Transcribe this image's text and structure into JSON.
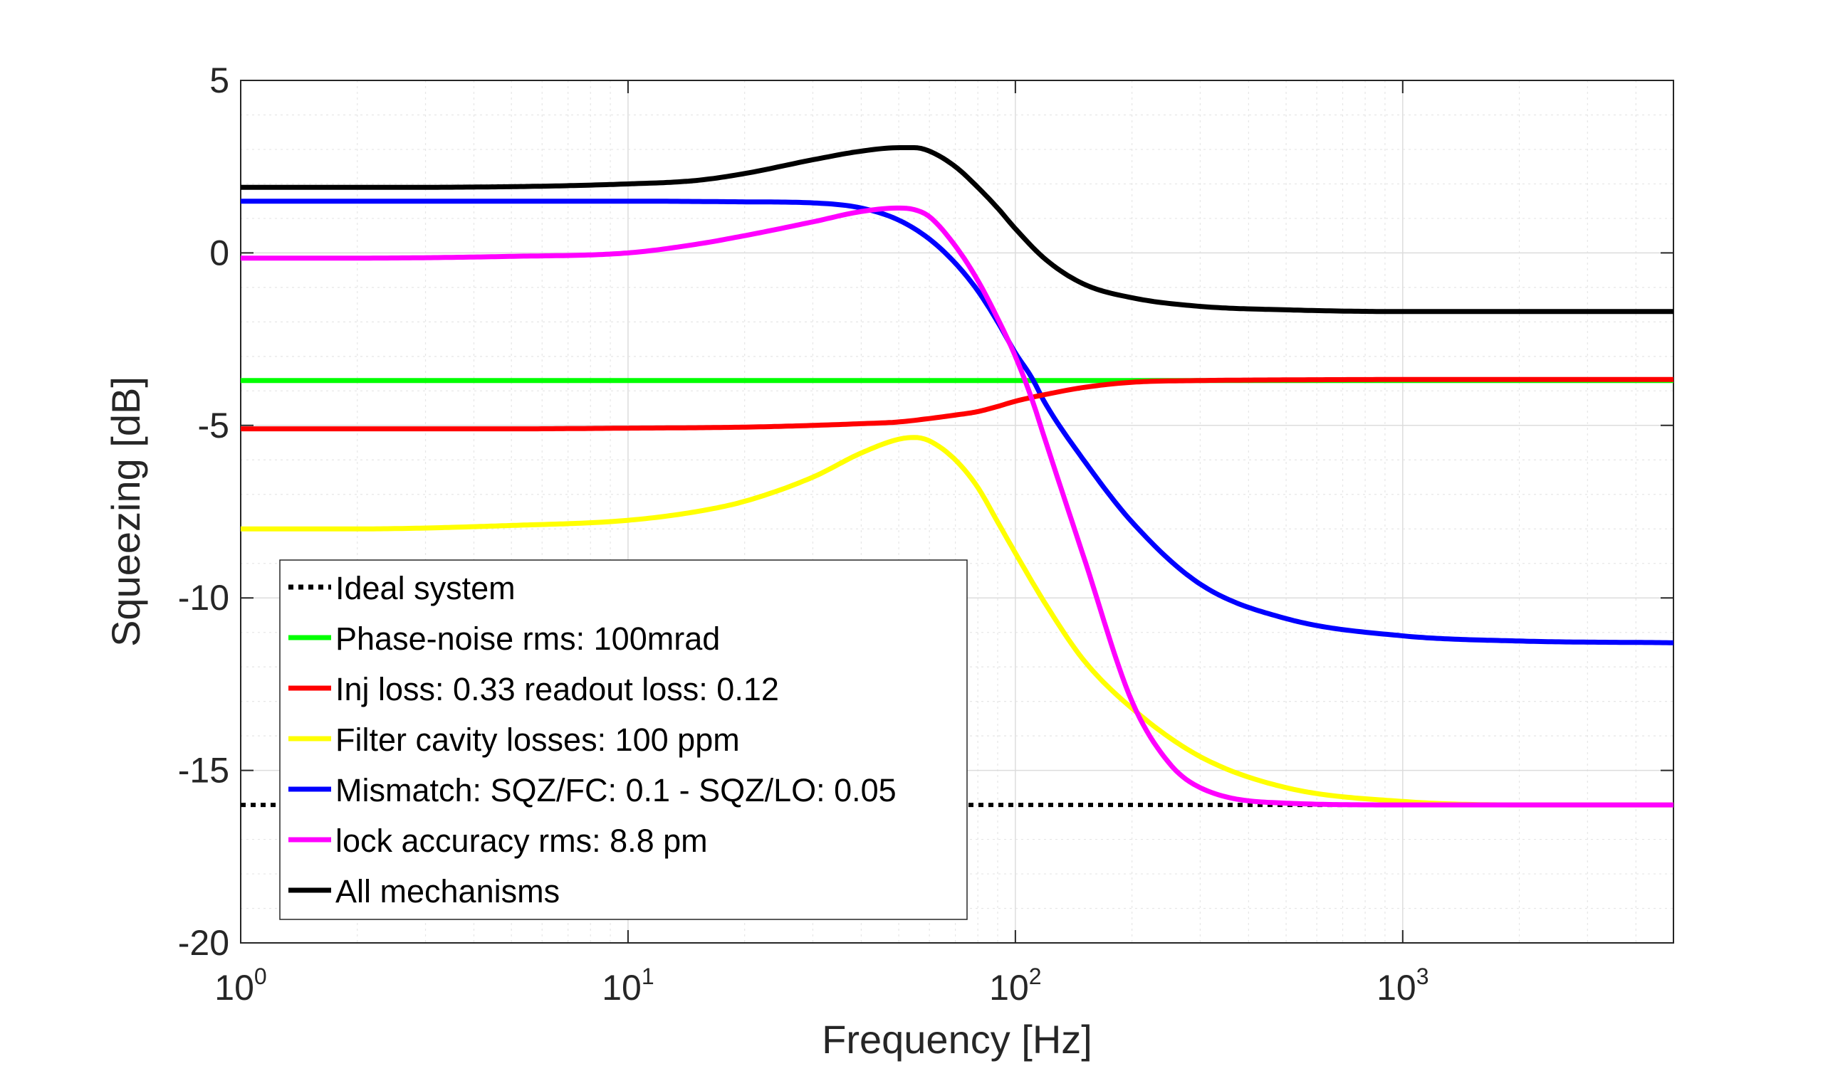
{
  "chart_data": {
    "type": "line",
    "xlabel": "Frequency [Hz]",
    "ylabel": "Squeezing [dB]",
    "xscale": "log",
    "xlim": [
      1,
      5000
    ],
    "ylim": [
      -20,
      5
    ],
    "x_ticks": [
      {
        "value": 1,
        "base": "10",
        "exp": "0"
      },
      {
        "value": 10,
        "base": "10",
        "exp": "1"
      },
      {
        "value": 100,
        "base": "10",
        "exp": "2"
      },
      {
        "value": 1000,
        "base": "10",
        "exp": "3"
      }
    ],
    "y_ticks": [
      {
        "value": 5,
        "label": "5"
      },
      {
        "value": 0,
        "label": "0"
      },
      {
        "value": -5,
        "label": "-5"
      },
      {
        "value": -10,
        "label": "-10"
      },
      {
        "value": -15,
        "label": "-15"
      },
      {
        "value": -20,
        "label": "-20"
      }
    ],
    "grid": true,
    "minor_grid": true,
    "legend_position": "bottom-left",
    "series": [
      {
        "name": "Ideal system",
        "color": "#000000",
        "style": "dotted",
        "x": [
          1,
          5000
        ],
        "y": [
          -16.0,
          -16.0
        ]
      },
      {
        "name": "Phase-noise rms: 100mrad",
        "color": "#00ff00",
        "style": "solid",
        "x": [
          1,
          5000
        ],
        "y": [
          -3.7,
          -3.7
        ]
      },
      {
        "name": "Inj loss: 0.33 readout loss: 0.12",
        "color": "#ff0000",
        "style": "solid",
        "x": [
          1,
          5,
          10,
          20,
          30,
          40,
          50,
          60,
          70,
          80,
          90,
          100,
          120,
          150,
          200,
          300,
          500,
          1000,
          2000,
          5000
        ],
        "y": [
          -5.1,
          -5.1,
          -5.08,
          -5.05,
          -5.0,
          -4.95,
          -4.9,
          -4.8,
          -4.7,
          -4.6,
          -4.45,
          -4.3,
          -4.1,
          -3.9,
          -3.75,
          -3.7,
          -3.68,
          -3.67,
          -3.67,
          -3.67
        ]
      },
      {
        "name": "Filter cavity losses: 100 ppm",
        "color": "#ffff00",
        "style": "solid",
        "x": [
          1,
          2,
          5,
          10,
          15,
          20,
          30,
          40,
          50,
          55,
          60,
          70,
          80,
          90,
          100,
          120,
          150,
          200,
          300,
          500,
          1000,
          2000,
          5000
        ],
        "y": [
          -8.0,
          -8.0,
          -7.9,
          -7.75,
          -7.5,
          -7.2,
          -6.5,
          -5.8,
          -5.4,
          -5.35,
          -5.45,
          -6.0,
          -6.8,
          -7.8,
          -8.7,
          -10.2,
          -11.8,
          -13.2,
          -14.6,
          -15.5,
          -15.9,
          -16.0,
          -16.0
        ]
      },
      {
        "name": "Mismatch: SQZ/FC: 0.1 - SQZ/LO: 0.05",
        "color": "#0000ff",
        "style": "solid",
        "x": [
          1,
          2,
          5,
          10,
          20,
          30,
          40,
          50,
          60,
          70,
          80,
          90,
          100,
          110,
          120,
          150,
          200,
          300,
          500,
          1000,
          2000,
          5000
        ],
        "y": [
          1.5,
          1.5,
          1.5,
          1.5,
          1.48,
          1.45,
          1.3,
          0.95,
          0.4,
          -0.3,
          -1.1,
          -2.0,
          -2.9,
          -3.6,
          -4.4,
          -6.0,
          -7.8,
          -9.6,
          -10.6,
          -11.1,
          -11.25,
          -11.3
        ]
      },
      {
        "name": "lock accuracy rms: 8.8 pm",
        "color": "#ff00ff",
        "style": "solid",
        "x": [
          1,
          2,
          5,
          10,
          15,
          20,
          30,
          40,
          50,
          55,
          60,
          70,
          80,
          90,
          100,
          110,
          120,
          150,
          200,
          250,
          300,
          500,
          1000,
          2000,
          5000
        ],
        "y": [
          -0.15,
          -0.15,
          -0.1,
          0.0,
          0.25,
          0.5,
          0.9,
          1.2,
          1.3,
          1.25,
          1.05,
          0.2,
          -0.8,
          -1.9,
          -3.0,
          -4.2,
          -5.5,
          -8.8,
          -13.0,
          -14.8,
          -15.5,
          -15.95,
          -16.0,
          -16.0,
          -16.0
        ]
      },
      {
        "name": "All mechanisms",
        "color": "#000000",
        "style": "solid",
        "x": [
          1,
          2,
          5,
          10,
          15,
          20,
          30,
          40,
          50,
          55,
          60,
          70,
          80,
          90,
          100,
          120,
          150,
          200,
          300,
          500,
          1000,
          2000,
          5000
        ],
        "y": [
          1.9,
          1.9,
          1.92,
          2.0,
          2.1,
          2.3,
          2.7,
          2.95,
          3.05,
          3.05,
          2.95,
          2.5,
          1.9,
          1.3,
          0.7,
          -0.2,
          -0.9,
          -1.3,
          -1.55,
          -1.65,
          -1.7,
          -1.7,
          -1.7
        ]
      }
    ]
  }
}
